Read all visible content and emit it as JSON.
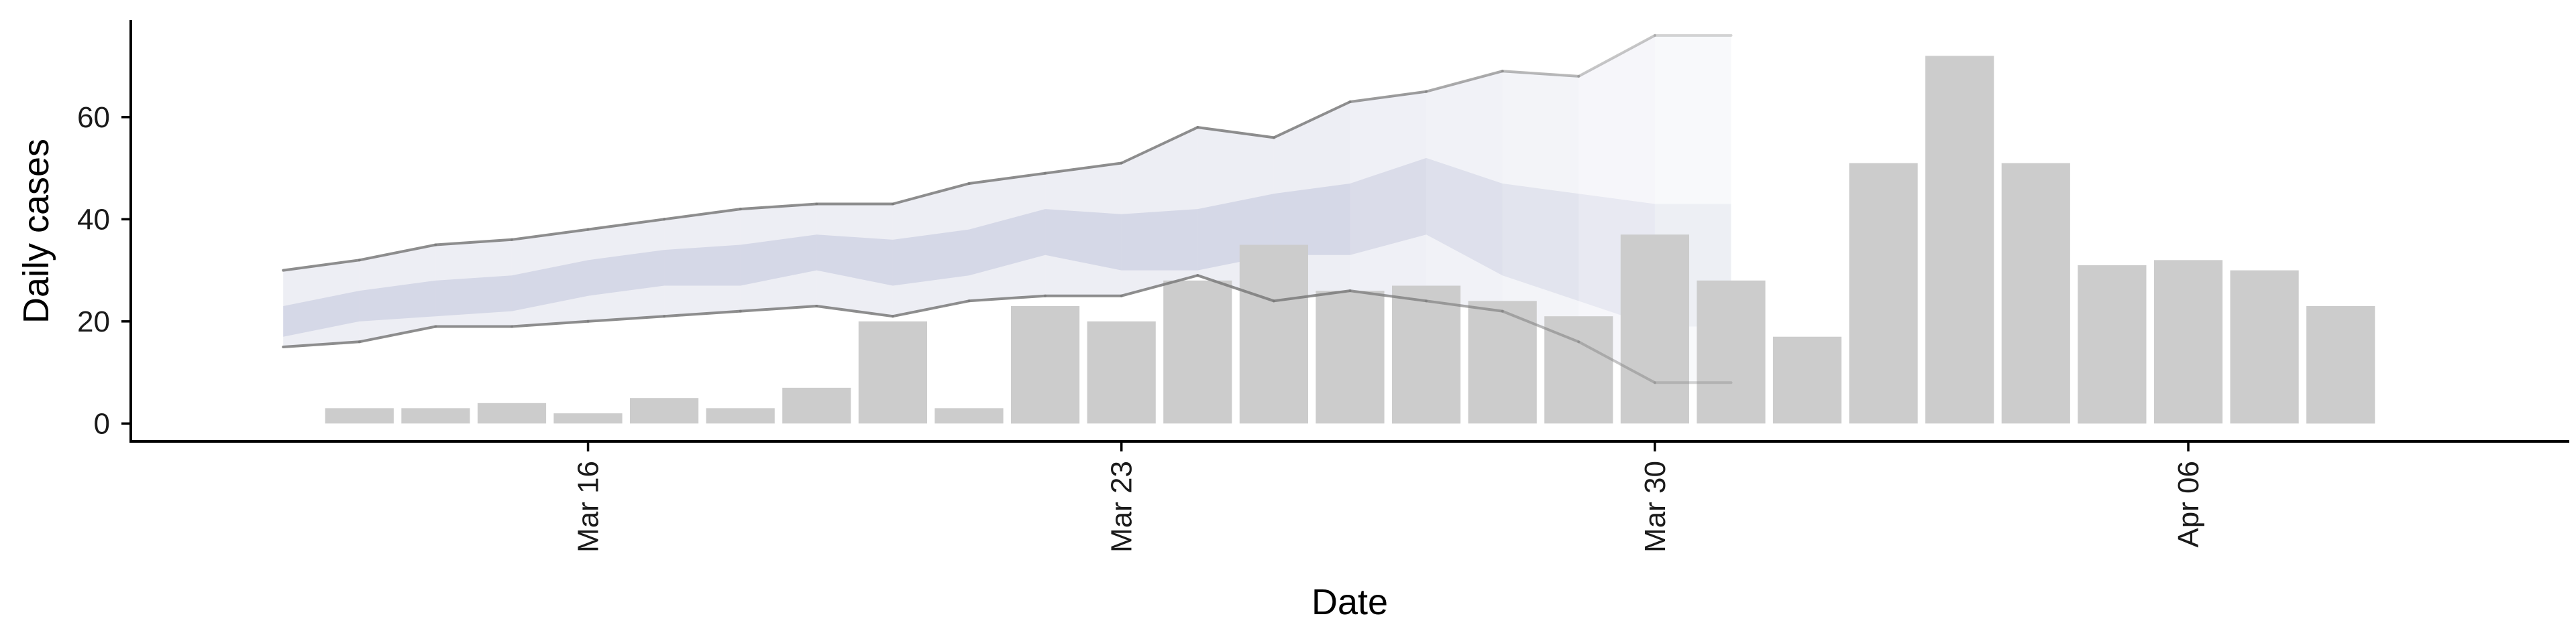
{
  "chart_data": {
    "type": "bar",
    "xlabel": "Date",
    "ylabel": "Daily cases",
    "ylim": [
      -3.5,
      79
    ],
    "yticks": [
      0,
      20,
      40,
      60
    ],
    "xticks": [
      {
        "date": "2020-03-16",
        "label": "Mar 16"
      },
      {
        "date": "2020-03-23",
        "label": "Mar 23"
      },
      {
        "date": "2020-03-30",
        "label": "Mar 30"
      },
      {
        "date": "2020-04-06",
        "label": "Apr 06"
      }
    ],
    "xlim": [
      "2020-03-10",
      "2020-04-11"
    ],
    "grid": false,
    "legend": "none",
    "bars": {
      "color": "#cccccc",
      "dates": [
        "2020-03-13",
        "2020-03-14",
        "2020-03-15",
        "2020-03-16",
        "2020-03-17",
        "2020-03-18",
        "2020-03-19",
        "2020-03-20",
        "2020-03-21",
        "2020-03-22",
        "2020-03-23",
        "2020-03-24",
        "2020-03-25",
        "2020-03-26",
        "2020-03-27",
        "2020-03-28",
        "2020-03-29",
        "2020-03-30",
        "2020-03-31",
        "2020-04-01",
        "2020-04-02",
        "2020-04-03",
        "2020-04-04",
        "2020-04-05",
        "2020-04-06",
        "2020-04-07",
        "2020-04-08",
        "2020-04-09",
        "2020-04-10"
      ],
      "values": [
        3,
        3,
        4,
        2,
        5,
        3,
        7,
        20,
        3,
        23,
        20,
        28,
        35,
        26,
        27,
        24,
        21,
        37,
        28,
        17,
        51,
        72,
        51,
        31,
        32,
        30,
        23,
        0,
        0
      ]
    },
    "forecast": {
      "color": "#b9bdd6",
      "line_color": "#7a7a7a",
      "dates": [
        "2020-03-12",
        "2020-03-13",
        "2020-03-14",
        "2020-03-15",
        "2020-03-16",
        "2020-03-17",
        "2020-03-18",
        "2020-03-19",
        "2020-03-20",
        "2020-03-21",
        "2020-03-22",
        "2020-03-23",
        "2020-03-24",
        "2020-03-25",
        "2020-03-26",
        "2020-03-27",
        "2020-03-28",
        "2020-03-29",
        "2020-03-30",
        "2020-03-31"
      ],
      "outer_upper": [
        30,
        32,
        35,
        36,
        38,
        40,
        42,
        43,
        43,
        47,
        49,
        51,
        58,
        56,
        63,
        65,
        69,
        68,
        76,
        76
      ],
      "outer_lower": [
        15,
        16,
        19,
        19,
        20,
        21,
        22,
        23,
        21,
        24,
        25,
        25,
        29,
        24,
        26,
        24,
        22,
        16,
        8,
        8
      ],
      "inner_upper": [
        23,
        26,
        28,
        29,
        32,
        34,
        35,
        37,
        36,
        38,
        42,
        41,
        42,
        45,
        47,
        52,
        47,
        45,
        43,
        43
      ],
      "inner_lower": [
        17,
        20,
        21,
        22,
        25,
        27,
        27,
        30,
        27,
        29,
        33,
        30,
        30,
        33,
        33,
        37,
        29,
        24,
        19,
        19
      ]
    }
  }
}
